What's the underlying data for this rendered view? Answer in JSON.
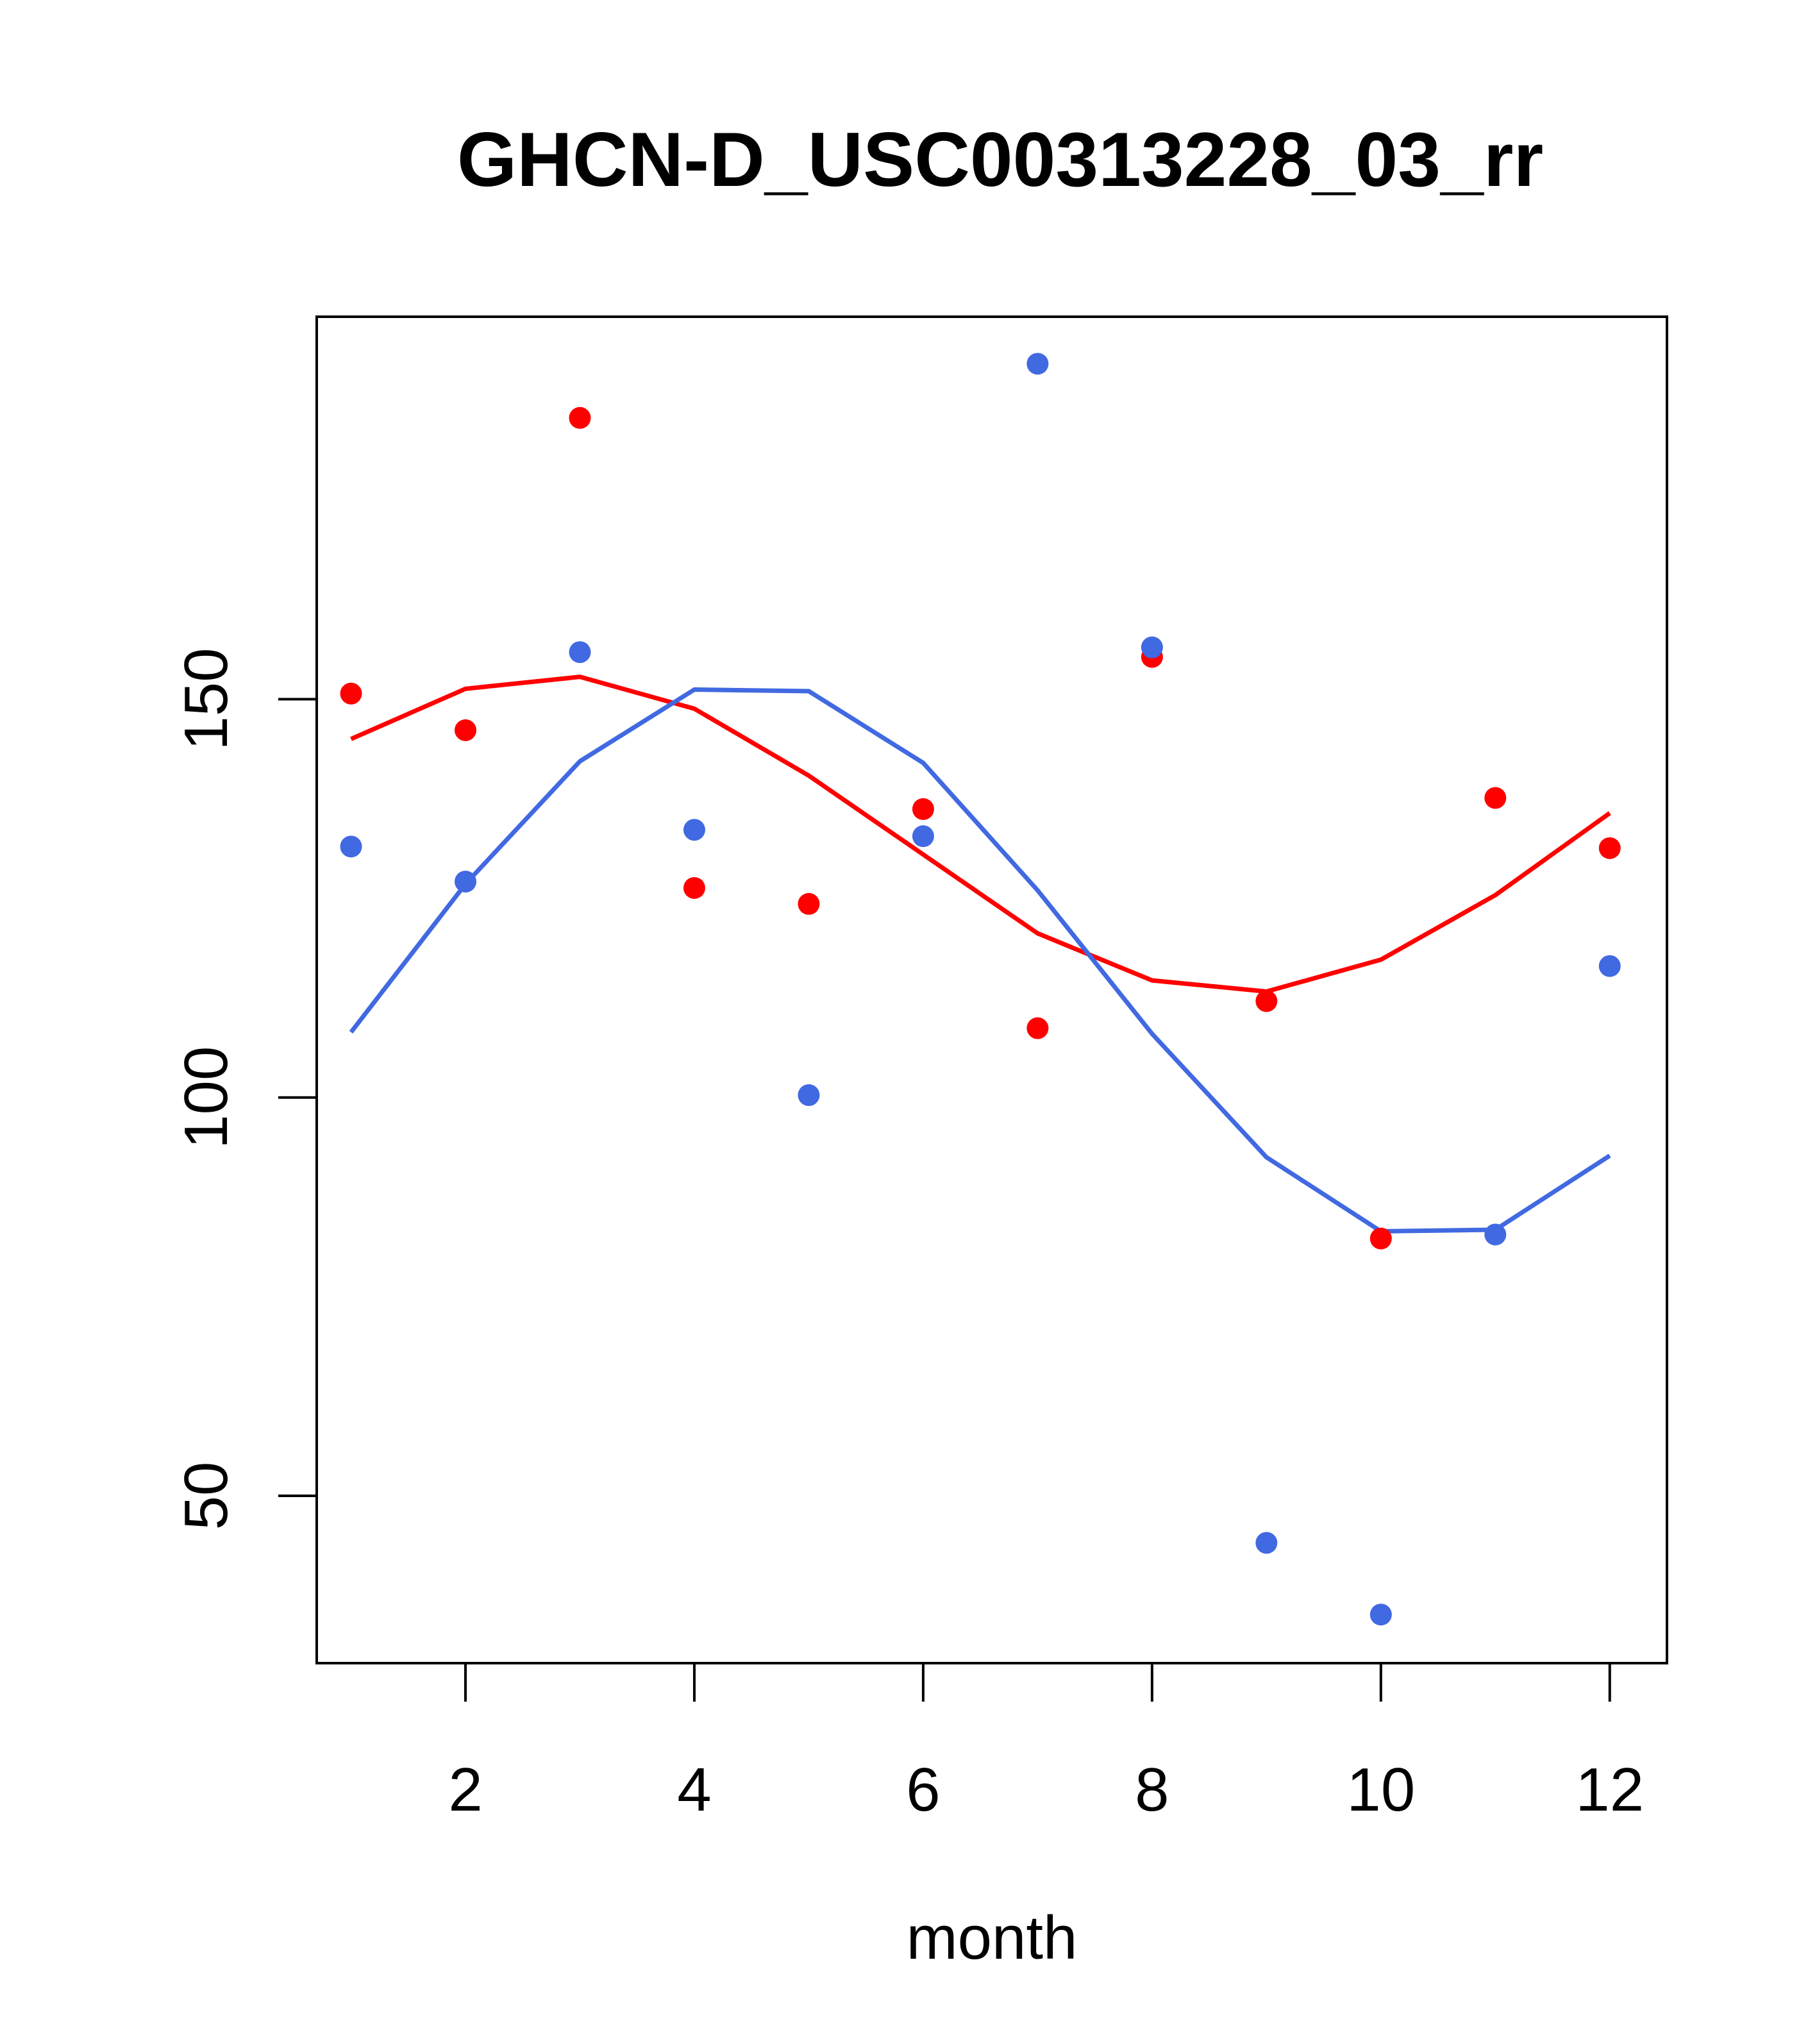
{
  "chart_data": {
    "type": "scatter",
    "title": "GHCN-D_USC00313228_03_rr",
    "xlabel": "month",
    "ylabel": "",
    "xlim": [
      0.7,
      12.5
    ],
    "ylim": [
      29,
      198
    ],
    "x_ticks": [
      2,
      4,
      6,
      8,
      10,
      12
    ],
    "y_ticks": [
      50,
      100,
      150
    ],
    "grid": false,
    "colors": {
      "red": "#ff0000",
      "blue": "#4169e1"
    },
    "series": [
      {
        "kind": "points",
        "color": "#ff0000",
        "x": [
          1,
          2,
          3,
          4,
          5,
          6,
          7,
          8,
          9,
          10,
          11,
          12
        ],
        "y": [
          150.7,
          146.1,
          185.3,
          126.3,
          124.3,
          136.2,
          108.7,
          155.3,
          112.1,
          82.3,
          137.6,
          131.3
        ]
      },
      {
        "kind": "points",
        "color": "#4169e1",
        "x": [
          1,
          2,
          3,
          4,
          5,
          6,
          7,
          8,
          9,
          10,
          11,
          12
        ],
        "y": [
          131.5,
          127.1,
          155.9,
          133.6,
          100.3,
          132.8,
          192.1,
          156.5,
          44.1,
          35.1,
          82.8,
          116.5
        ]
      },
      {
        "kind": "line",
        "color": "#ff0000",
        "x": [
          1,
          2,
          3,
          4,
          5,
          6,
          7,
          8,
          9,
          10,
          11,
          12
        ],
        "y": [
          145,
          151.3,
          152.8,
          148.8,
          140.4,
          130.5,
          120.6,
          114.7,
          113.3,
          117.3,
          125.4,
          135.7
        ]
      },
      {
        "kind": "line",
        "color": "#4169e1",
        "x": [
          1,
          2,
          3,
          4,
          5,
          6,
          7,
          8,
          9,
          10,
          11,
          12
        ],
        "y": [
          108.2,
          126.8,
          142.2,
          151.2,
          151,
          142,
          126,
          108,
          92.5,
          83.2,
          83.4,
          92.7
        ]
      }
    ]
  }
}
